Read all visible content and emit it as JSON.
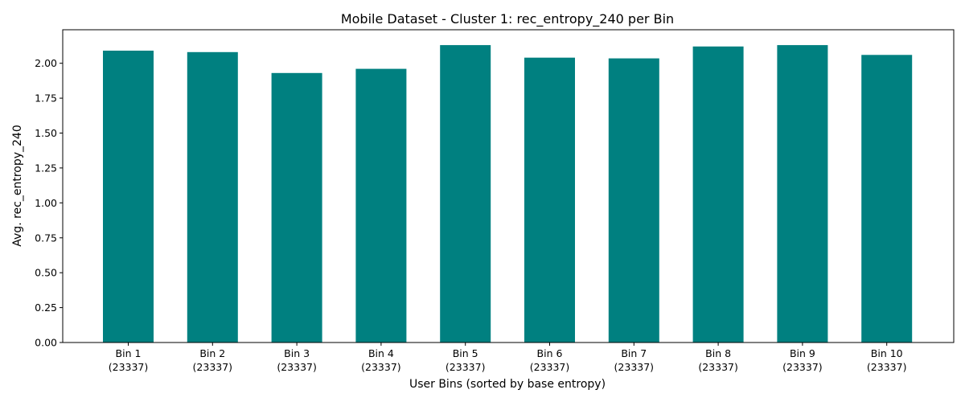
{
  "chart_data": {
    "type": "bar",
    "title": "Mobile Dataset - Cluster 1: rec_entropy_240 per Bin",
    "xlabel": "User Bins (sorted by base entropy)",
    "ylabel": "Avg. rec_entropy_240",
    "categories": [
      "Bin 1",
      "Bin 2",
      "Bin 3",
      "Bin 4",
      "Bin 5",
      "Bin 6",
      "Bin 7",
      "Bin 8",
      "Bin 9",
      "Bin 10"
    ],
    "category_counts": [
      "(23337)",
      "(23337)",
      "(23337)",
      "(23337)",
      "(23337)",
      "(23337)",
      "(23337)",
      "(23337)",
      "(23337)",
      "(23337)"
    ],
    "values": [
      2.09,
      2.08,
      1.93,
      1.96,
      2.13,
      2.04,
      2.035,
      2.12,
      2.13,
      2.06
    ],
    "ylim": [
      0,
      2.24
    ],
    "yticks": [
      "0.00",
      "0.25",
      "0.50",
      "0.75",
      "1.00",
      "1.25",
      "1.50",
      "1.75",
      "2.00"
    ],
    "bar_color": "#008080",
    "grid": false,
    "legend": "none"
  }
}
